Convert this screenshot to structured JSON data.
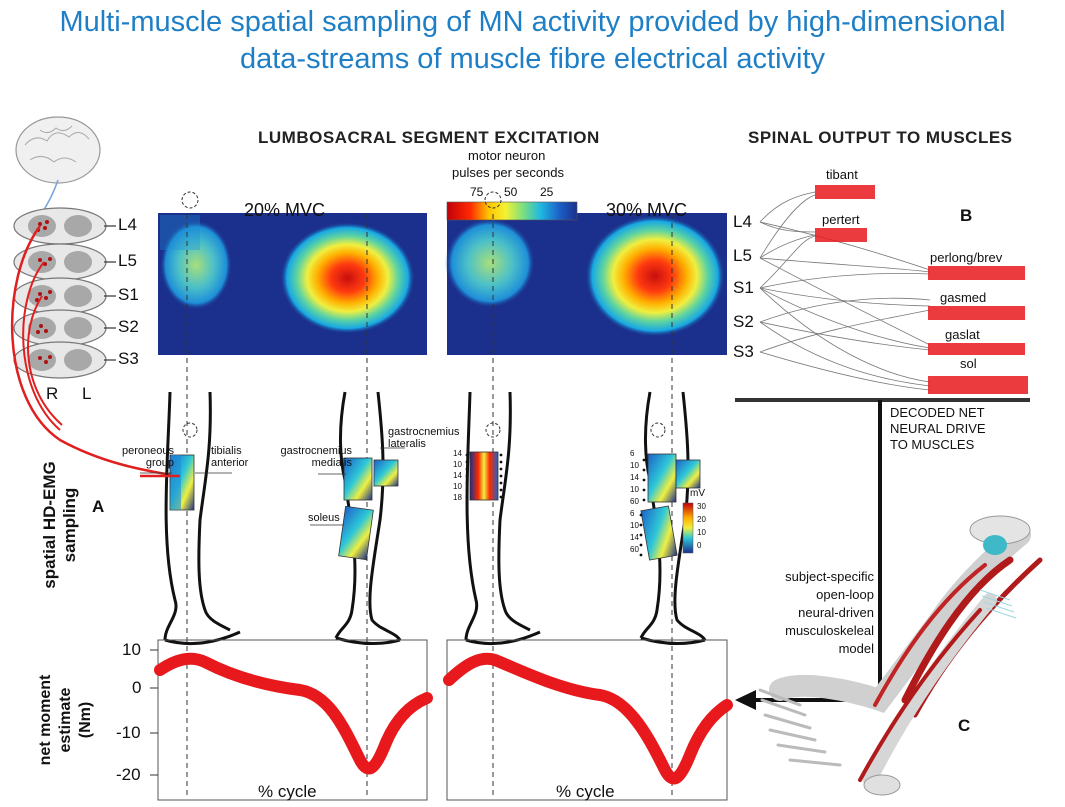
{
  "title": {
    "line1": "Multi-muscle spatial sampling of MN activity provided by high-dimensional",
    "line2": "data-streams of muscle fibre electrical activity"
  },
  "lumbosacral": {
    "header": "LUMBOSACRAL SEGMENT EXCITATION",
    "colorbar_label_line1": "motor neuron",
    "colorbar_label_line2": "pulses per seconds",
    "colorbar_ticks": [
      "75",
      "50",
      "25"
    ],
    "heatmap_left_title": "20% MVC",
    "heatmap_right_title": "30% MVC"
  },
  "spinal_levels_left": [
    "L4",
    "L5",
    "S1",
    "S2",
    "S3"
  ],
  "spinal_levels_right": [
    "L4",
    "L5",
    "S1",
    "S2",
    "S3"
  ],
  "spinal_side_labels": [
    "R",
    "L"
  ],
  "spinal_output": {
    "header": "SPINAL OUTPUT TO MUSCLES",
    "muscles": [
      "tibant",
      "pertert",
      "perlong/brev",
      "gasmed",
      "gaslat",
      "sol"
    ],
    "panel_letter": "B",
    "decoded_line1": "DECODED NET",
    "decoded_line2": "NEURAL DRIVE",
    "decoded_line3": "TO MUSCLES"
  },
  "hdemg": {
    "axis_line1": "spatial HD-EMG",
    "axis_line2": "sampling",
    "panel_letter": "A",
    "labels": {
      "peroneous1": "peroneous",
      "peroneous2": "group",
      "tibialis1": "tibialis",
      "tibialis2": "anterior",
      "gasmed1": "gastrocnemius",
      "gasmed2": "medialis",
      "gaslat1": "gastrocnemius",
      "gaslat2": "lateralis",
      "soleus": "soleus"
    },
    "colorbar_unit": "mV",
    "colorbar_ticks": [
      "30",
      "20",
      "10",
      "0"
    ],
    "electrode_numbers_left": [
      "14",
      "10",
      "14",
      "10",
      "18"
    ],
    "electrode_numbers_right": [
      "6",
      "10",
      "14",
      "10",
      "60",
      "6",
      "10",
      "14",
      "60"
    ]
  },
  "moment": {
    "ylabel_line1": "net moment",
    "ylabel_line2": "estimate",
    "ylabel_line3": "(Nm)",
    "xlabel": "% cycle",
    "yticks": [
      "10",
      "0",
      "-10",
      "-20"
    ]
  },
  "model": {
    "line1": "subject-specific",
    "line2": "open-loop",
    "line3": "neural-driven",
    "line4": "musculoskeleal",
    "line5": "model",
    "panel_letter": "C"
  },
  "colors": {
    "title": "#1f7fc6",
    "moment_curve": "#e8191d",
    "spike_red": "#e8191d",
    "heat_background": "#1b2f8c",
    "nerve": "#e02020"
  }
}
